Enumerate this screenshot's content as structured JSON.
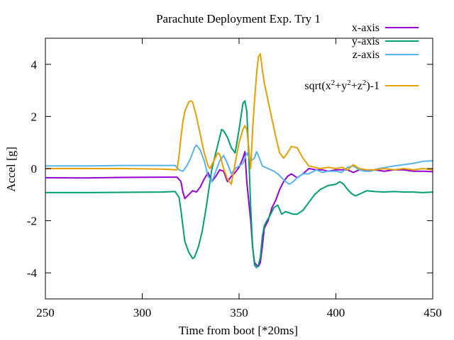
{
  "chart_data": {
    "type": "line",
    "title": "Parachute Deployment Exp. Try 1",
    "xlabel": "Time from boot [*20ms]",
    "ylabel": "Accel [g]",
    "xlim": [
      250,
      450
    ],
    "ylim": [
      -5,
      5
    ],
    "xticks": [
      "250",
      "300",
      "350",
      "400",
      "450"
    ],
    "yticks": [
      "-4",
      "-2",
      "0",
      "2",
      "4"
    ],
    "xtick_values": [
      250,
      300,
      350,
      400,
      450
    ],
    "ytick_values": [
      -4,
      -2,
      0,
      2,
      4
    ],
    "grid": false,
    "legend_position": "top-right",
    "series": [
      {
        "name": "x-axis",
        "color": "#9400d3",
        "points": [
          [
            250,
            -0.35
          ],
          [
            270,
            -0.36
          ],
          [
            290,
            -0.34
          ],
          [
            310,
            -0.33
          ],
          [
            318,
            -0.33
          ],
          [
            320,
            -0.5
          ],
          [
            321,
            -0.9
          ],
          [
            322,
            -1.15
          ],
          [
            324,
            -1.0
          ],
          [
            326,
            -0.85
          ],
          [
            328,
            -0.9
          ],
          [
            330,
            -0.7
          ],
          [
            332,
            -0.4
          ],
          [
            334,
            -0.15
          ],
          [
            336,
            -0.5
          ],
          [
            338,
            -0.3
          ],
          [
            340,
            -0.05
          ],
          [
            342,
            -0.1
          ],
          [
            344,
            -0.5
          ],
          [
            346,
            -0.3
          ],
          [
            348,
            -0.15
          ],
          [
            350,
            0.05
          ],
          [
            352,
            0.4
          ],
          [
            353,
            0.65
          ],
          [
            354,
            -0.5
          ],
          [
            356,
            -2.0
          ],
          [
            357,
            -3.0
          ],
          [
            358,
            -3.6
          ],
          [
            359,
            -3.7
          ],
          [
            360,
            -3.75
          ],
          [
            361,
            -3.6
          ],
          [
            362,
            -3.0
          ],
          [
            363,
            -2.3
          ],
          [
            365,
            -2.0
          ],
          [
            367,
            -1.5
          ],
          [
            369,
            -1.2
          ],
          [
            371,
            -0.8
          ],
          [
            373,
            -0.5
          ],
          [
            375,
            -0.3
          ],
          [
            377,
            -0.2
          ],
          [
            380,
            -0.35
          ],
          [
            383,
            -0.2
          ],
          [
            386,
            0.0
          ],
          [
            390,
            -0.05
          ],
          [
            393,
            -0.05
          ],
          [
            396,
            -0.1
          ],
          [
            400,
            -0.05
          ],
          [
            403,
            -0.05
          ],
          [
            406,
            -0.05
          ],
          [
            409,
            -0.15
          ],
          [
            412,
            -0.05
          ],
          [
            416,
            -0.1
          ],
          [
            420,
            -0.05
          ],
          [
            425,
            -0.1
          ],
          [
            430,
            -0.05
          ],
          [
            435,
            -0.05
          ],
          [
            440,
            -0.1
          ],
          [
            445,
            -0.1
          ],
          [
            450,
            -0.12
          ]
        ]
      },
      {
        "name": "y-axis",
        "color": "#009e73",
        "points": [
          [
            250,
            -0.92
          ],
          [
            270,
            -0.92
          ],
          [
            290,
            -0.91
          ],
          [
            310,
            -0.9
          ],
          [
            317,
            -0.88
          ],
          [
            319,
            -1.1
          ],
          [
            320,
            -1.6
          ],
          [
            321,
            -2.2
          ],
          [
            322,
            -2.8
          ],
          [
            324,
            -3.2
          ],
          [
            326,
            -3.45
          ],
          [
            327,
            -3.4
          ],
          [
            329,
            -3.0
          ],
          [
            331,
            -2.4
          ],
          [
            333,
            -1.5
          ],
          [
            335,
            -0.5
          ],
          [
            336,
            0.0
          ],
          [
            338,
            0.6
          ],
          [
            340,
            1.2
          ],
          [
            341,
            1.5
          ],
          [
            342,
            1.45
          ],
          [
            344,
            1.2
          ],
          [
            346,
            0.8
          ],
          [
            348,
            0.6
          ],
          [
            350,
            1.5
          ],
          [
            352,
            2.5
          ],
          [
            353,
            2.6
          ],
          [
            354,
            2.2
          ],
          [
            355,
            0.5
          ],
          [
            356,
            -1.5
          ],
          [
            357,
            -3.0
          ],
          [
            358,
            -3.7
          ],
          [
            359,
            -3.8
          ],
          [
            360,
            -3.7
          ],
          [
            361,
            -3.4
          ],
          [
            362,
            -2.6
          ],
          [
            363,
            -2.2
          ],
          [
            364,
            -2.05
          ],
          [
            366,
            -1.8
          ],
          [
            368,
            -1.5
          ],
          [
            370,
            -1.4
          ],
          [
            372,
            -1.75
          ],
          [
            374,
            -1.65
          ],
          [
            376,
            -1.7
          ],
          [
            378,
            -1.75
          ],
          [
            380,
            -1.75
          ],
          [
            383,
            -1.6
          ],
          [
            386,
            -1.3
          ],
          [
            389,
            -1.0
          ],
          [
            392,
            -0.8
          ],
          [
            396,
            -0.65
          ],
          [
            400,
            -0.6
          ],
          [
            402,
            -0.5
          ],
          [
            404,
            -0.6
          ],
          [
            406,
            -0.8
          ],
          [
            408,
            -0.95
          ],
          [
            410,
            -1.05
          ],
          [
            413,
            -0.95
          ],
          [
            416,
            -0.85
          ],
          [
            420,
            -0.88
          ],
          [
            425,
            -0.9
          ],
          [
            430,
            -0.88
          ],
          [
            435,
            -0.9
          ],
          [
            440,
            -0.9
          ],
          [
            445,
            -0.92
          ],
          [
            450,
            -0.9
          ]
        ]
      },
      {
        "name": "z-axis",
        "color": "#56b4e9",
        "points": [
          [
            250,
            0.1
          ],
          [
            270,
            0.1
          ],
          [
            290,
            0.12
          ],
          [
            310,
            0.12
          ],
          [
            317,
            0.12
          ],
          [
            319,
            -0.05
          ],
          [
            321,
            -0.1
          ],
          [
            323,
            0.1
          ],
          [
            325,
            0.4
          ],
          [
            327,
            0.8
          ],
          [
            328,
            0.9
          ],
          [
            330,
            0.7
          ],
          [
            332,
            0.3
          ],
          [
            334,
            -0.3
          ],
          [
            336,
            -0.5
          ],
          [
            338,
            -0.1
          ],
          [
            340,
            0.3
          ],
          [
            342,
            0.5
          ],
          [
            344,
            0.2
          ],
          [
            346,
            -0.2
          ],
          [
            348,
            0.0
          ],
          [
            350,
            0.1
          ],
          [
            352,
            0.2
          ],
          [
            354,
            0.6
          ],
          [
            356,
            0.3
          ],
          [
            358,
            0.4
          ],
          [
            359,
            0.65
          ],
          [
            360,
            0.5
          ],
          [
            362,
            0.1
          ],
          [
            365,
            0.0
          ],
          [
            368,
            -0.1
          ],
          [
            370,
            -0.2
          ],
          [
            372,
            -0.35
          ],
          [
            374,
            -0.5
          ],
          [
            376,
            -0.6
          ],
          [
            378,
            -0.5
          ],
          [
            380,
            -0.35
          ],
          [
            383,
            -0.2
          ],
          [
            386,
            -0.2
          ],
          [
            390,
            -0.05
          ],
          [
            393,
            -0.15
          ],
          [
            396,
            -0.1
          ],
          [
            400,
            -0.1
          ],
          [
            403,
            -0.15
          ],
          [
            406,
            0.05
          ],
          [
            409,
            0.1
          ],
          [
            412,
            -0.05
          ],
          [
            415,
            -0.1
          ],
          [
            418,
            -0.1
          ],
          [
            422,
            0.0
          ],
          [
            426,
            0.05
          ],
          [
            430,
            0.1
          ],
          [
            435,
            0.15
          ],
          [
            440,
            0.2
          ],
          [
            445,
            0.28
          ],
          [
            450,
            0.3
          ]
        ]
      },
      {
        "name": "sqrt(x2+y2+z2)-1",
        "color": "#e69f00",
        "points": [
          [
            250,
            0.0
          ],
          [
            270,
            0.0
          ],
          [
            290,
            0.0
          ],
          [
            310,
            -0.02
          ],
          [
            318,
            -0.05
          ],
          [
            319,
            0.5
          ],
          [
            320,
            1.2
          ],
          [
            321,
            1.8
          ],
          [
            322,
            2.2
          ],
          [
            324,
            2.55
          ],
          [
            325,
            2.6
          ],
          [
            326,
            2.55
          ],
          [
            328,
            2.0
          ],
          [
            330,
            1.3
          ],
          [
            332,
            0.6
          ],
          [
            334,
            0.1
          ],
          [
            335,
            0.0
          ],
          [
            337,
            0.3
          ],
          [
            339,
            0.6
          ],
          [
            340,
            0.55
          ],
          [
            342,
            0.0
          ],
          [
            344,
            -0.4
          ],
          [
            346,
            -0.6
          ],
          [
            348,
            0.2
          ],
          [
            350,
            1.0
          ],
          [
            352,
            1.5
          ],
          [
            353,
            1.65
          ],
          [
            354,
            1.5
          ],
          [
            355,
            0.8
          ],
          [
            356,
            0.0
          ],
          [
            357,
            1.5
          ],
          [
            358,
            2.6
          ],
          [
            359,
            3.6
          ],
          [
            360,
            4.3
          ],
          [
            361,
            4.4
          ],
          [
            362,
            3.8
          ],
          [
            363,
            3.3
          ],
          [
            365,
            2.6
          ],
          [
            367,
            1.9
          ],
          [
            369,
            1.2
          ],
          [
            371,
            0.6
          ],
          [
            373,
            0.4
          ],
          [
            375,
            0.6
          ],
          [
            377,
            0.85
          ],
          [
            380,
            0.8
          ],
          [
            383,
            0.4
          ],
          [
            386,
            0.1
          ],
          [
            389,
            0.05
          ],
          [
            392,
            0.0
          ],
          [
            396,
            0.05
          ],
          [
            400,
            0.0
          ],
          [
            403,
            0.05
          ],
          [
            406,
            -0.05
          ],
          [
            409,
            0.15
          ],
          [
            412,
            0.0
          ],
          [
            416,
            -0.05
          ],
          [
            420,
            -0.05
          ],
          [
            425,
            0.0
          ],
          [
            430,
            -0.05
          ],
          [
            435,
            0.0
          ],
          [
            440,
            -0.05
          ],
          [
            445,
            0.0
          ],
          [
            450,
            -0.05
          ]
        ]
      }
    ],
    "legend_entries": [
      {
        "base": "x-axis"
      },
      {
        "base": "y-axis"
      },
      {
        "base": "z-axis"
      },
      {
        "base": "sqrt(x",
        "sup1": "2",
        "mid1": "+y",
        "sup2": "2",
        "mid2": "+z",
        "sup3": "2",
        "tail": ")-1"
      }
    ]
  }
}
